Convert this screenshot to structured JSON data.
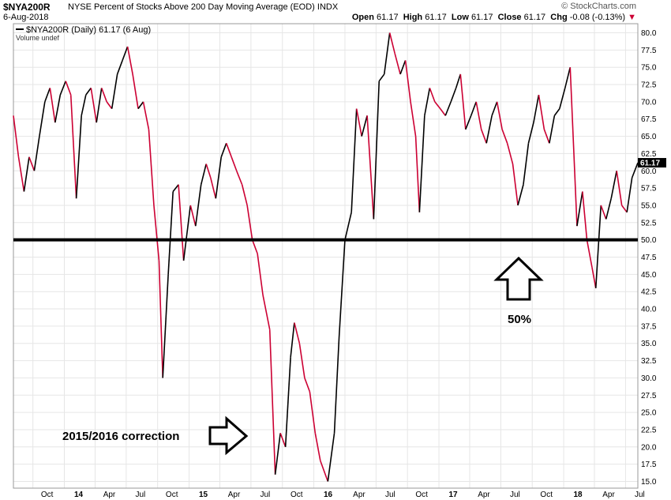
{
  "header": {
    "symbol": "$NYA200R",
    "description": "NYSE Percent of Stocks Above 200 Day Moving Average (EOD)",
    "exchange": "INDX",
    "date": "6-Aug-2018",
    "brand": "© StockCharts.com",
    "open_label": "Open",
    "open": "61.17",
    "high_label": "High",
    "high": "61.17",
    "low_label": "Low",
    "low": "61.17",
    "close_label": "Close",
    "close": "61.17",
    "chg_label": "Chg",
    "chg": "-0.08 (-0.13%)"
  },
  "legend": {
    "series": "$NYA200R (Daily) 61.17 (6 Aug)",
    "volume": "Volume undef"
  },
  "last_value_label": "61.17",
  "colors": {
    "up": "#000000",
    "down": "#cc0033",
    "grid": "#e6e6e6",
    "reference": "#000000"
  },
  "annotations": {
    "correction_label": "2015/2016 correction",
    "fifty_label": "50%"
  },
  "chart_data": {
    "type": "line",
    "y_axis_position": "right",
    "ylim": [
      15,
      81
    ],
    "y_ticks": [
      "15.0",
      "17.5",
      "20.0",
      "22.5",
      "25.0",
      "27.5",
      "30.0",
      "32.5",
      "35.0",
      "37.5",
      "40.0",
      "42.5",
      "45.0",
      "47.5",
      "50.0",
      "52.5",
      "55.0",
      "57.5",
      "60.0",
      "62.5",
      "65.0",
      "67.5",
      "70.0",
      "72.5",
      "75.0",
      "77.5",
      "80.0"
    ],
    "x_tick_labels": [
      "Oct",
      "14",
      "Apr",
      "Jul",
      "Oct",
      "15",
      "Apr",
      "Jul",
      "Oct",
      "16",
      "Apr",
      "Jul",
      "Oct",
      "17",
      "Apr",
      "Jul",
      "Oct",
      "18",
      "Apr",
      "Jul"
    ],
    "x_tick_dates": [
      "2013-10-01",
      "2014-01-01",
      "2014-04-01",
      "2014-07-01",
      "2014-10-01",
      "2015-01-01",
      "2015-04-01",
      "2015-07-01",
      "2015-10-01",
      "2016-01-01",
      "2016-04-01",
      "2016-07-01",
      "2016-10-01",
      "2017-01-01",
      "2017-04-01",
      "2017-07-01",
      "2017-10-01",
      "2018-01-01",
      "2018-04-01",
      "2018-07-01"
    ],
    "x_range": [
      "2013-08-05",
      "2018-08-06"
    ],
    "reference_line": 50,
    "grid": true,
    "points": [
      [
        "2013-08-05",
        68
      ],
      [
        "2013-08-20",
        62
      ],
      [
        "2013-09-05",
        57
      ],
      [
        "2013-09-20",
        62
      ],
      [
        "2013-10-05",
        60
      ],
      [
        "2013-10-20",
        65
      ],
      [
        "2013-11-05",
        70
      ],
      [
        "2013-11-20",
        72
      ],
      [
        "2013-12-05",
        67
      ],
      [
        "2013-12-20",
        71
      ],
      [
        "2014-01-05",
        73
      ],
      [
        "2014-01-20",
        71
      ],
      [
        "2014-02-05",
        56
      ],
      [
        "2014-02-20",
        68
      ],
      [
        "2014-03-05",
        71
      ],
      [
        "2014-03-20",
        72
      ],
      [
        "2014-04-05",
        67
      ],
      [
        "2014-04-20",
        72
      ],
      [
        "2014-05-05",
        70
      ],
      [
        "2014-05-20",
        69
      ],
      [
        "2014-06-05",
        74
      ],
      [
        "2014-06-20",
        76
      ],
      [
        "2014-07-05",
        78
      ],
      [
        "2014-07-20",
        74
      ],
      [
        "2014-08-05",
        69
      ],
      [
        "2014-08-20",
        70
      ],
      [
        "2014-09-05",
        66
      ],
      [
        "2014-09-20",
        55
      ],
      [
        "2014-10-05",
        47
      ],
      [
        "2014-10-16",
        30
      ],
      [
        "2014-11-01",
        45
      ],
      [
        "2014-11-15",
        57
      ],
      [
        "2014-12-01",
        58
      ],
      [
        "2014-12-16",
        47
      ],
      [
        "2015-01-05",
        55
      ],
      [
        "2015-01-20",
        52
      ],
      [
        "2015-02-05",
        58
      ],
      [
        "2015-02-20",
        61
      ],
      [
        "2015-03-05",
        59
      ],
      [
        "2015-03-20",
        56
      ],
      [
        "2015-04-05",
        62
      ],
      [
        "2015-04-20",
        64
      ],
      [
        "2015-05-05",
        62
      ],
      [
        "2015-05-20",
        60
      ],
      [
        "2015-06-05",
        58
      ],
      [
        "2015-06-20",
        55
      ],
      [
        "2015-07-05",
        50
      ],
      [
        "2015-07-20",
        48
      ],
      [
        "2015-08-05",
        42
      ],
      [
        "2015-08-25",
        37
      ],
      [
        "2015-09-10",
        16
      ],
      [
        "2015-09-25",
        22
      ],
      [
        "2015-10-10",
        20
      ],
      [
        "2015-10-25",
        33
      ],
      [
        "2015-11-05",
        38
      ],
      [
        "2015-11-20",
        35
      ],
      [
        "2015-12-05",
        30
      ],
      [
        "2015-12-20",
        28
      ],
      [
        "2016-01-05",
        22
      ],
      [
        "2016-01-20",
        18
      ],
      [
        "2016-02-11",
        15
      ],
      [
        "2016-03-01",
        22
      ],
      [
        "2016-03-15",
        36
      ],
      [
        "2016-04-01",
        50
      ],
      [
        "2016-04-20",
        54
      ],
      [
        "2016-05-05",
        69
      ],
      [
        "2016-05-20",
        65
      ],
      [
        "2016-06-05",
        68
      ],
      [
        "2016-06-24",
        53
      ],
      [
        "2016-07-10",
        73
      ],
      [
        "2016-07-25",
        74
      ],
      [
        "2016-08-10",
        80
      ],
      [
        "2016-08-25",
        77
      ],
      [
        "2016-09-10",
        74
      ],
      [
        "2016-09-25",
        76
      ],
      [
        "2016-10-10",
        70
      ],
      [
        "2016-10-25",
        65
      ],
      [
        "2016-11-05",
        54
      ],
      [
        "2016-11-20",
        68
      ],
      [
        "2016-12-05",
        72
      ],
      [
        "2016-12-20",
        70
      ],
      [
        "2017-01-05",
        69
      ],
      [
        "2017-01-20",
        68
      ],
      [
        "2017-02-05",
        70
      ],
      [
        "2017-02-20",
        72
      ],
      [
        "2017-03-05",
        74
      ],
      [
        "2017-03-20",
        66
      ],
      [
        "2017-04-05",
        68
      ],
      [
        "2017-04-20",
        70
      ],
      [
        "2017-05-05",
        66
      ],
      [
        "2017-05-20",
        64
      ],
      [
        "2017-06-05",
        68
      ],
      [
        "2017-06-20",
        70
      ],
      [
        "2017-07-05",
        66
      ],
      [
        "2017-07-20",
        64
      ],
      [
        "2017-08-05",
        61
      ],
      [
        "2017-08-20",
        55
      ],
      [
        "2017-09-05",
        58
      ],
      [
        "2017-09-20",
        64
      ],
      [
        "2017-10-05",
        67
      ],
      [
        "2017-10-20",
        71
      ],
      [
        "2017-11-05",
        66
      ],
      [
        "2017-11-20",
        64
      ],
      [
        "2017-12-05",
        68
      ],
      [
        "2017-12-20",
        69
      ],
      [
        "2018-01-05",
        72
      ],
      [
        "2018-01-20",
        75
      ],
      [
        "2018-02-09",
        52
      ],
      [
        "2018-02-25",
        57
      ],
      [
        "2018-03-10",
        50
      ],
      [
        "2018-03-25",
        46
      ],
      [
        "2018-04-05",
        43
      ],
      [
        "2018-04-20",
        55
      ],
      [
        "2018-05-05",
        53
      ],
      [
        "2018-05-20",
        56
      ],
      [
        "2018-06-05",
        60
      ],
      [
        "2018-06-20",
        55
      ],
      [
        "2018-07-05",
        54
      ],
      [
        "2018-07-20",
        59
      ],
      [
        "2018-08-06",
        61.17
      ]
    ]
  }
}
